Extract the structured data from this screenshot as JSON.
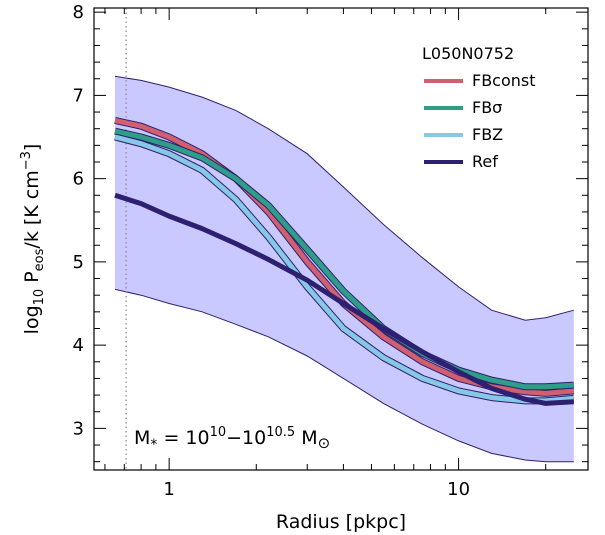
{
  "chart_data": {
    "type": "line",
    "xlabel": "Radius [pkpc]",
    "ylabel": "log10 Peos/k [K cm−3]",
    "ylabel_parts": {
      "prefix": "log",
      "sub": "10",
      "p": "P",
      "psub": "eos",
      "rest": "/k [K cm",
      "sup": "−3",
      "close": "]"
    },
    "x_scale": "log",
    "xlim": [
      0.55,
      28
    ],
    "ylim": [
      2.5,
      8.05
    ],
    "x_ticks": [
      {
        "value": 1,
        "label": "1"
      },
      {
        "value": 10,
        "label": "10"
      }
    ],
    "y_ticks": [
      {
        "value": 3,
        "label": "3"
      },
      {
        "value": 4,
        "label": "4"
      },
      {
        "value": 5,
        "label": "5"
      },
      {
        "value": 6,
        "label": "6"
      },
      {
        "value": 7,
        "label": "7"
      },
      {
        "value": 8,
        "label": "8"
      }
    ],
    "vline_x": 0.71,
    "annotation": {
      "text": "M* = 10^10−10^10.5 M⊙",
      "parts": {
        "m": "M",
        "star": "*",
        "eq": " = 10",
        "exp1": "10",
        "dash": "−10",
        "exp2": "10.5",
        "msun": "M",
        "sun": "⊙"
      }
    },
    "legend_title": "L050N0752",
    "band": {
      "x": [
        0.65,
        0.8,
        1.0,
        1.3,
        1.7,
        2.2,
        3.0,
        4.0,
        5.5,
        7.5,
        10,
        13,
        17,
        20,
        25
      ],
      "upper": [
        7.23,
        7.18,
        7.1,
        6.98,
        6.82,
        6.6,
        6.3,
        5.9,
        5.45,
        5.05,
        4.7,
        4.42,
        4.3,
        4.33,
        4.42
      ],
      "lower": [
        4.67,
        4.6,
        4.5,
        4.4,
        4.25,
        4.1,
        3.87,
        3.6,
        3.3,
        3.05,
        2.85,
        2.7,
        2.62,
        2.6,
        2.6
      ]
    },
    "series": [
      {
        "name": "FBconst",
        "color": "#d06070",
        "x": [
          0.65,
          0.8,
          1.0,
          1.3,
          1.7,
          2.2,
          3.0,
          4.0,
          5.5,
          7.5,
          10,
          13,
          17,
          20,
          25
        ],
        "y": [
          6.7,
          6.63,
          6.5,
          6.3,
          6.0,
          5.6,
          5.0,
          4.5,
          4.1,
          3.8,
          3.6,
          3.5,
          3.44,
          3.42,
          3.45
        ]
      },
      {
        "name": "FBσ",
        "color": "#2f9e88",
        "x": [
          0.65,
          0.8,
          1.0,
          1.3,
          1.7,
          2.2,
          3.0,
          4.0,
          5.5,
          7.5,
          10,
          13,
          17,
          20,
          25
        ],
        "y": [
          6.57,
          6.5,
          6.4,
          6.25,
          6.0,
          5.68,
          5.15,
          4.65,
          4.2,
          3.9,
          3.7,
          3.58,
          3.5,
          3.5,
          3.52
        ]
      },
      {
        "name": "FBZ",
        "color": "#86c8e6",
        "x": [
          0.65,
          0.8,
          1.0,
          1.3,
          1.7,
          2.2,
          3.0,
          4.0,
          5.5,
          7.5,
          10,
          13,
          17,
          20,
          25
        ],
        "y": [
          6.5,
          6.42,
          6.3,
          6.1,
          5.75,
          5.3,
          4.7,
          4.2,
          3.85,
          3.6,
          3.45,
          3.37,
          3.33,
          3.33,
          3.36
        ]
      },
      {
        "name": "Ref",
        "color": "#2e2070",
        "x": [
          0.65,
          0.8,
          1.0,
          1.3,
          1.7,
          2.2,
          3.0,
          4.0,
          5.5,
          7.5,
          10,
          13,
          17,
          20,
          25
        ],
        "y": [
          5.8,
          5.7,
          5.55,
          5.4,
          5.22,
          5.03,
          4.78,
          4.5,
          4.2,
          3.92,
          3.68,
          3.48,
          3.35,
          3.3,
          3.32
        ]
      }
    ],
    "band_color": "#c9c9ff",
    "band_edge_color": "#2e2070"
  }
}
